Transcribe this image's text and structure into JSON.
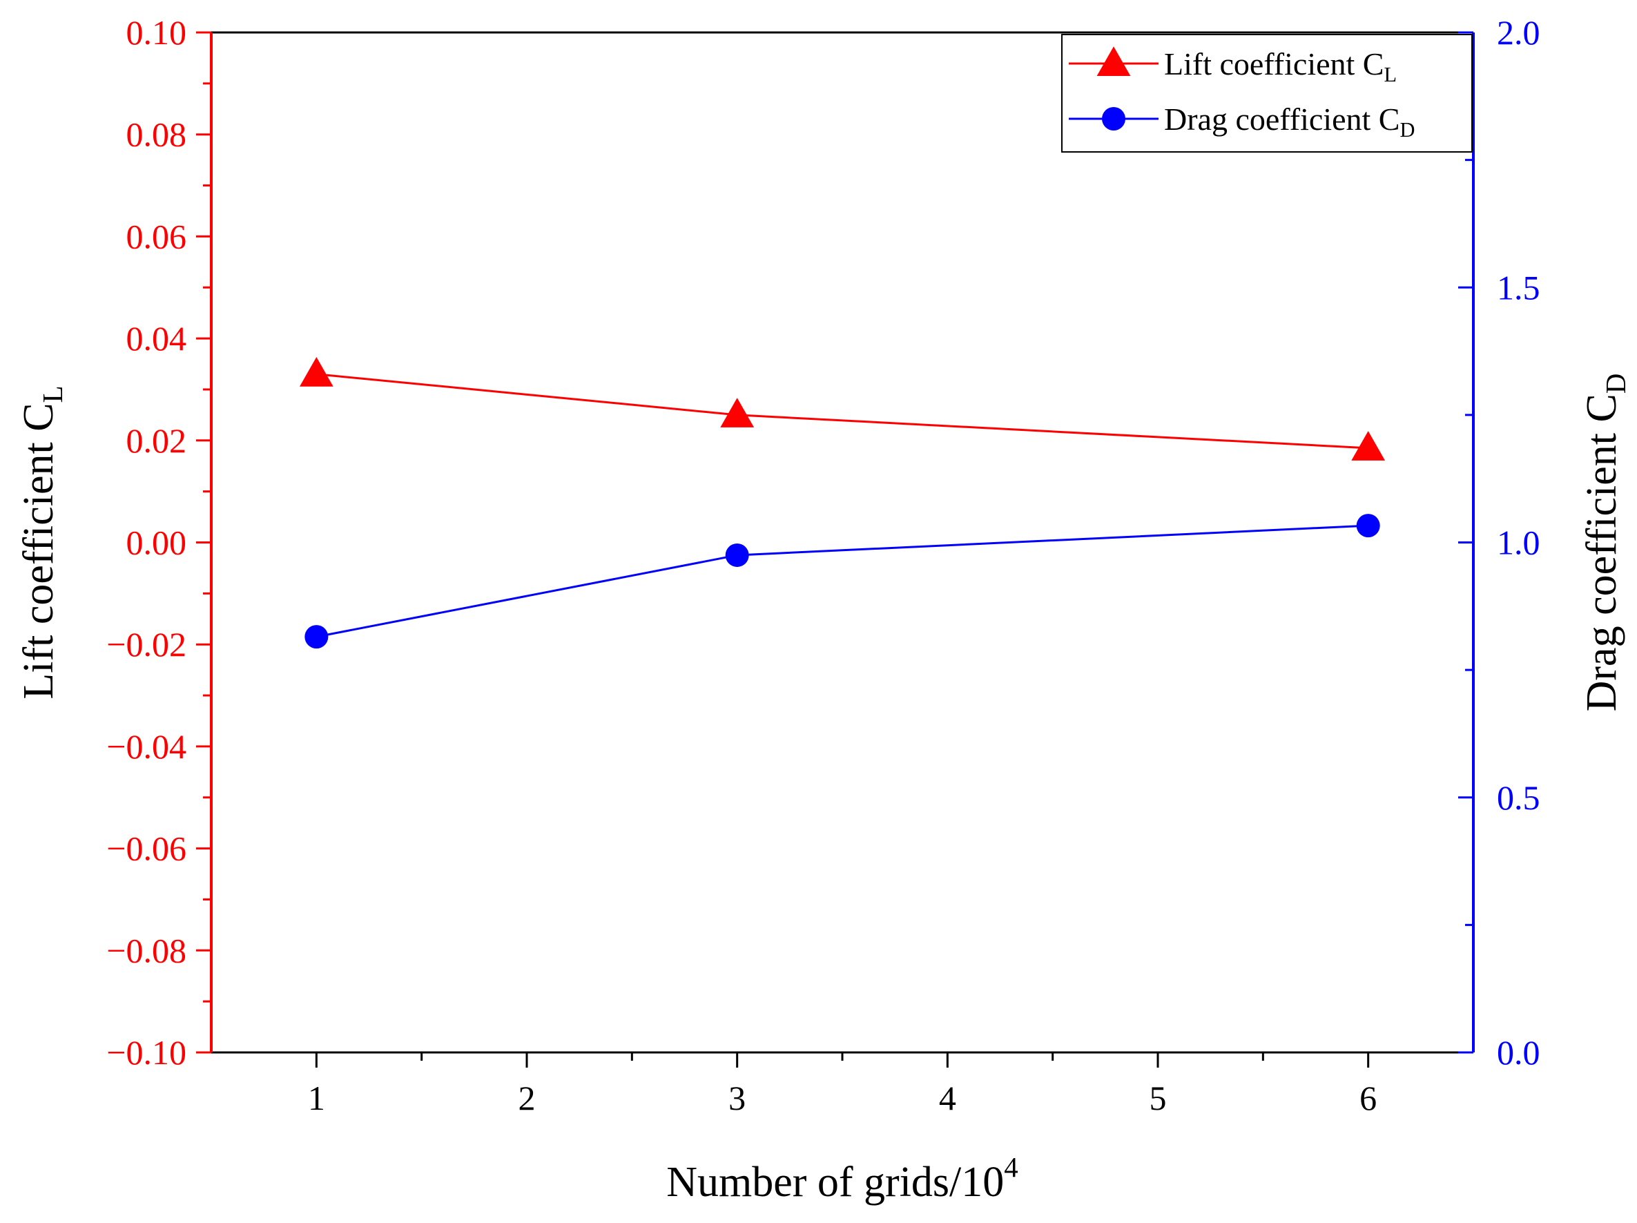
{
  "chart_data": {
    "type": "line",
    "title": "",
    "xlabel": "Number of grids/10",
    "xlabel_sup": "4",
    "xlim": [
      0.5,
      6.5
    ],
    "xticks": [
      1,
      2,
      3,
      4,
      5,
      6
    ],
    "xtick_labels": [
      "1",
      "2",
      "3",
      "4",
      "5",
      "6"
    ],
    "y_left": {
      "label": "Lift coefficient C",
      "label_sub": "L",
      "ylim": [
        -0.1,
        0.1
      ],
      "ticks": [
        -0.1,
        -0.08,
        -0.06,
        -0.04,
        -0.02,
        0.0,
        0.02,
        0.04,
        0.06,
        0.08,
        0.1
      ],
      "tick_labels": [
        "−0.10",
        "−0.08",
        "−0.06",
        "−0.04",
        "−0.02",
        "0.00",
        "0.02",
        "0.04",
        "0.06",
        "0.08",
        "0.10"
      ],
      "color": "#ff0000"
    },
    "y_right": {
      "label": "Drag coefficient C",
      "label_sub": "D",
      "ylim": [
        0.0,
        2.0
      ],
      "ticks": [
        0.0,
        0.5,
        1.0,
        1.5,
        2.0
      ],
      "tick_labels": [
        "0.0",
        "0.5",
        "1.0",
        "1.5",
        "2.0"
      ],
      "color": "#0000ff"
    },
    "series": [
      {
        "name": "Lift coefficient C",
        "name_sub": "L",
        "axis": "left",
        "marker": "triangle",
        "color": "#ff0000",
        "x": [
          1,
          3,
          6
        ],
        "values": [
          0.033,
          0.025,
          0.0185
        ]
      },
      {
        "name": "Drag coefficient C",
        "name_sub": "D",
        "axis": "right",
        "marker": "circle",
        "color": "#0000ff",
        "x": [
          1,
          3,
          6
        ],
        "values": [
          0.815,
          0.975,
          1.033
        ]
      }
    ],
    "legend_position": "top-right",
    "grid": false
  }
}
